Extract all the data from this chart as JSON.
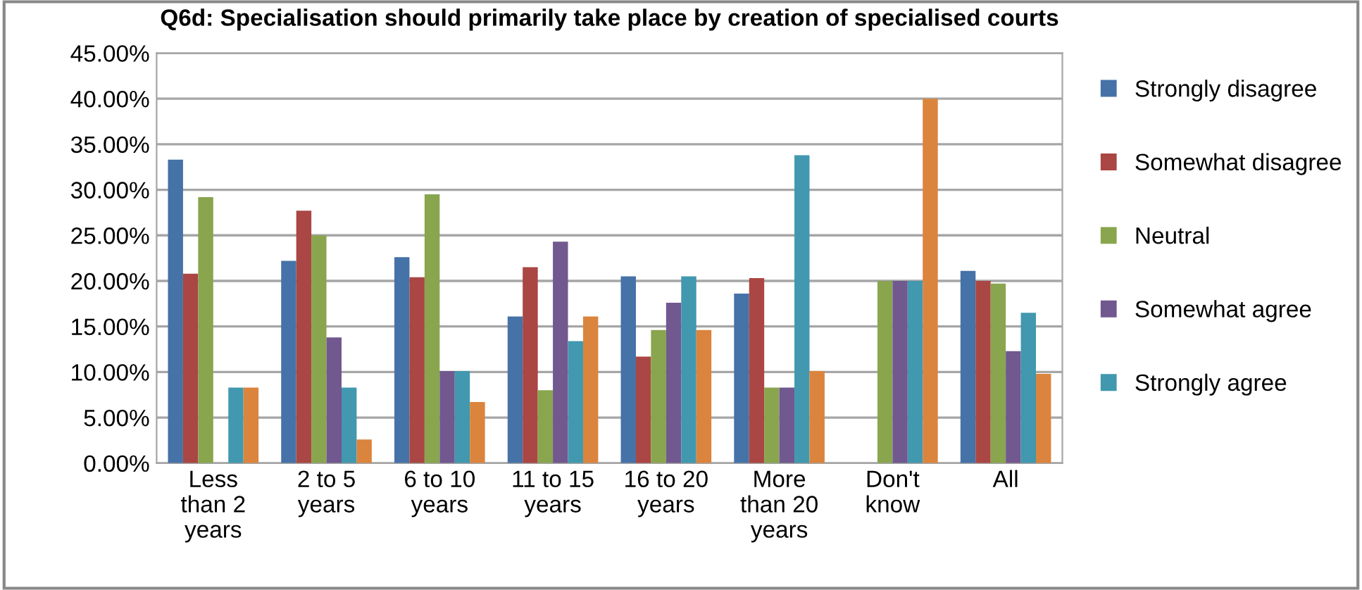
{
  "chart_data": {
    "type": "bar",
    "title": "Q6d: Specialisation should primarily take place by creation of specialised courts",
    "categories": [
      "Less\nthan 2\nyears",
      "2 to 5\nyears",
      "6 to 10\nyears",
      "11 to 15\nyears",
      "16 to 20\nyears",
      "More\nthan 20\nyears",
      "Don't\nknow",
      "All"
    ],
    "series": [
      {
        "name": "Strongly disagree",
        "color": "#4572a7",
        "values": [
          33.3,
          22.2,
          22.6,
          16.1,
          20.5,
          18.6,
          null,
          21.1
        ]
      },
      {
        "name": "Somewhat disagree",
        "color": "#aa4643",
        "values": [
          20.8,
          27.7,
          20.4,
          21.5,
          11.7,
          20.3,
          null,
          20.0
        ]
      },
      {
        "name": "Neutral",
        "color": "#89a54e",
        "values": [
          29.2,
          25.0,
          29.5,
          8.0,
          14.6,
          8.3,
          20.0,
          19.7
        ]
      },
      {
        "name": "Somewhat agree",
        "color": "#71588f",
        "values": [
          null,
          13.8,
          10.1,
          24.3,
          17.6,
          8.3,
          20.0,
          12.3
        ]
      },
      {
        "name": "Strongly agree",
        "color": "#4198af",
        "values": [
          8.3,
          8.3,
          10.1,
          13.4,
          20.5,
          33.8,
          20.0,
          16.5
        ]
      },
      {
        "color": "#db843d",
        "values": [
          8.3,
          2.6,
          6.7,
          16.1,
          14.6,
          10.1,
          40.0,
          9.8
        ]
      }
    ],
    "ylim": [
      0,
      45
    ],
    "yticks": [
      {
        "value": 0,
        "label": "0.00%"
      },
      {
        "value": 5,
        "label": "5.00%"
      },
      {
        "value": 10,
        "label": "10.00%"
      },
      {
        "value": 15,
        "label": "15.00%"
      },
      {
        "value": 20,
        "label": "20.00%"
      },
      {
        "value": 25,
        "label": "25.00%"
      },
      {
        "value": 30,
        "label": "30.00%"
      },
      {
        "value": 35,
        "label": "35.00%"
      },
      {
        "value": 40,
        "label": "40.00%"
      },
      {
        "value": 45,
        "label": "45.00%"
      }
    ],
    "grid": "y",
    "legend": "right"
  }
}
